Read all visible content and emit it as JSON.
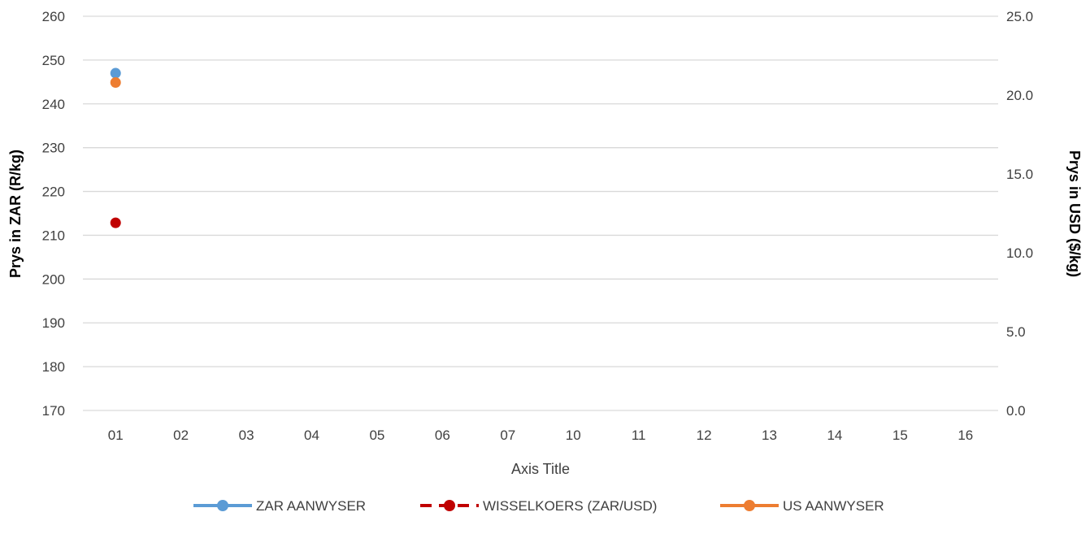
{
  "chart_data": {
    "type": "line",
    "title": "",
    "xlabel": "Axis Title",
    "ylabel_left": "Prys in ZAR (R/kg)",
    "ylabel_right": "Prys in USD ($/kg)",
    "categories": [
      "01",
      "02",
      "03",
      "04",
      "05",
      "06",
      "07",
      "10",
      "11",
      "12",
      "13",
      "14",
      "15",
      "16"
    ],
    "y_left": {
      "min": 170,
      "max": 260,
      "step": 10,
      "ticks": [
        "170",
        "180",
        "190",
        "200",
        "210",
        "220",
        "230",
        "240",
        "250",
        "260"
      ]
    },
    "y_right": {
      "min": 0,
      "max": 25,
      "step": 5,
      "ticks": [
        "0.0",
        "5.0",
        "10.0",
        "15.0",
        "20.0",
        "25.0"
      ]
    },
    "grid": true,
    "legend_position": "bottom",
    "series": [
      {
        "name": "ZAR AANWYSER",
        "axis": "left",
        "color": "#5B9BD5",
        "dash": "solid",
        "values": [
          247,
          null,
          null,
          null,
          null,
          null,
          null,
          null,
          null,
          null,
          null,
          null,
          null,
          null
        ]
      },
      {
        "name": "WISSELKOERS (ZAR/USD)",
        "axis": "right",
        "color": "#C00000",
        "dash": "dashed",
        "values": [
          11.9,
          null,
          null,
          null,
          null,
          null,
          null,
          null,
          null,
          null,
          null,
          null,
          null,
          null
        ]
      },
      {
        "name": "US AANWYSER",
        "axis": "right",
        "color": "#ED7D31",
        "dash": "solid",
        "values": [
          20.8,
          null,
          null,
          null,
          null,
          null,
          null,
          null,
          null,
          null,
          null,
          null,
          null,
          null
        ]
      }
    ]
  }
}
